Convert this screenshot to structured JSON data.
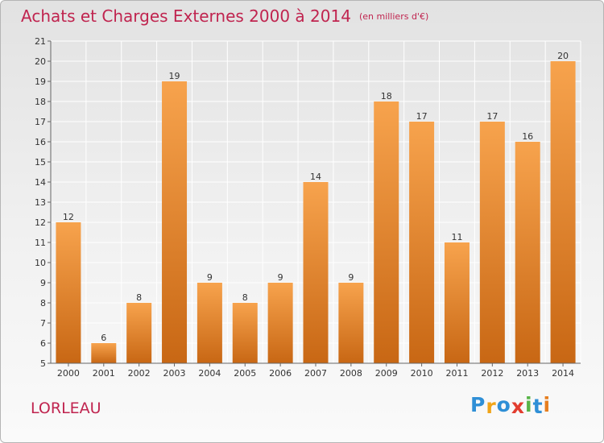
{
  "title": "Achats et Charges Externes 2000 à 2014",
  "subtitle": "(en milliers d'€)",
  "commune": "LORLEAU",
  "logo": {
    "letters": [
      "P",
      "r",
      "o",
      "x",
      "i",
      "t",
      "i"
    ],
    "colors": [
      "#2f8fd6",
      "#f0a418",
      "#2f8fd6",
      "#e23d2f",
      "#58b447",
      "#2f8fd6",
      "#e67e1f"
    ]
  },
  "colors": {
    "bar_top": "#f7a34d",
    "bar_bottom": "#c86714",
    "title": "#c0244f"
  },
  "chart_data": {
    "type": "bar",
    "categories": [
      "2000",
      "2001",
      "2002",
      "2003",
      "2004",
      "2005",
      "2006",
      "2007",
      "2008",
      "2009",
      "2010",
      "2011",
      "2012",
      "2013",
      "2014"
    ],
    "values": [
      12,
      6,
      8,
      19,
      9,
      8,
      9,
      14,
      9,
      18,
      17,
      11,
      17,
      16,
      20
    ],
    "ylim": [
      5,
      21
    ],
    "yticks": [
      5,
      6,
      7,
      8,
      9,
      10,
      11,
      12,
      13,
      14,
      15,
      16,
      17,
      18,
      19,
      20,
      21
    ],
    "grid": true
  }
}
